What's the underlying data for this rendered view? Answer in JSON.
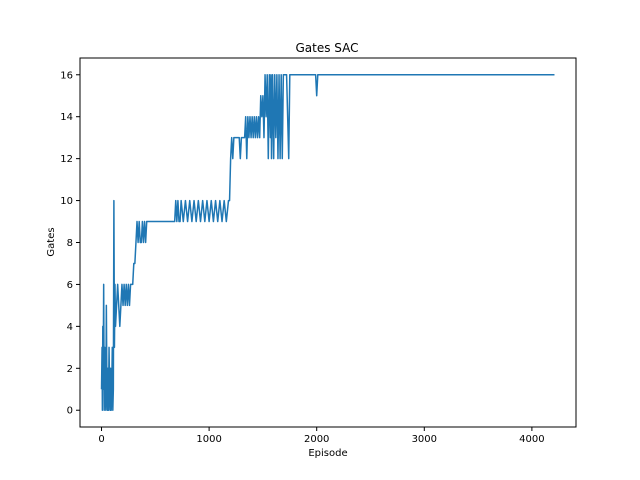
{
  "chart_data": {
    "type": "line",
    "title": "Gates SAC",
    "xlabel": "Episode",
    "ylabel": "Gates",
    "xlim": [
      -200,
      4410
    ],
    "ylim": [
      -0.8,
      16.8
    ],
    "xticks": [
      0,
      1000,
      2000,
      3000,
      4000
    ],
    "yticks": [
      0,
      2,
      4,
      6,
      8,
      10,
      12,
      14,
      16
    ],
    "grid": false,
    "legend": "none",
    "series": [
      {
        "color": "#1f77b4",
        "x": [
          0,
          5,
          8,
          12,
          15,
          20,
          25,
          30,
          35,
          40,
          45,
          50,
          55,
          60,
          65,
          70,
          75,
          80,
          85,
          90,
          95,
          100,
          105,
          110,
          115,
          120,
          125,
          130,
          140,
          150,
          160,
          170,
          180,
          190,
          200,
          210,
          220,
          230,
          240,
          250,
          260,
          270,
          280,
          290,
          300,
          310,
          320,
          330,
          340,
          350,
          360,
          370,
          380,
          390,
          400,
          410,
          420,
          440,
          460,
          480,
          500,
          550,
          600,
          650,
          680,
          690,
          700,
          710,
          720,
          730,
          740,
          760,
          780,
          800,
          820,
          840,
          860,
          880,
          900,
          920,
          940,
          960,
          980,
          1000,
          1020,
          1040,
          1060,
          1080,
          1100,
          1120,
          1140,
          1160,
          1180,
          1190,
          1195,
          1200,
          1210,
          1220,
          1230,
          1240,
          1250,
          1260,
          1270,
          1280,
          1290,
          1300,
          1320,
          1330,
          1340,
          1350,
          1360,
          1370,
          1380,
          1390,
          1400,
          1410,
          1420,
          1430,
          1440,
          1450,
          1460,
          1470,
          1480,
          1490,
          1500,
          1510,
          1520,
          1530,
          1540,
          1550,
          1560,
          1570,
          1575,
          1580,
          1590,
          1600,
          1610,
          1620,
          1630,
          1640,
          1650,
          1660,
          1670,
          1680,
          1690,
          1700,
          1720,
          1740,
          1750,
          1760,
          1800,
          1850,
          1900,
          1950,
          1990,
          2000,
          2010,
          2100,
          2500,
          3000,
          3500,
          4000,
          4210
        ],
        "y": [
          1,
          3,
          0,
          4,
          1,
          6,
          0,
          3,
          1,
          0,
          5,
          1,
          0,
          2,
          0,
          3,
          1,
          0,
          2,
          0,
          1,
          3,
          0,
          1,
          10,
          3,
          6,
          4,
          5,
          6,
          5,
          4,
          5,
          6,
          5,
          6,
          5,
          6,
          5,
          6,
          5,
          6,
          6,
          6,
          7,
          7,
          8,
          9,
          8,
          9,
          8,
          8,
          9,
          8,
          9,
          8,
          9,
          9,
          9,
          9,
          9,
          9,
          9,
          9,
          9,
          10,
          9,
          10,
          9,
          9,
          10,
          9,
          10,
          9,
          10,
          9,
          10,
          9,
          10,
          9,
          10,
          9,
          10,
          9,
          10,
          9,
          10,
          9,
          10,
          9,
          10,
          9,
          10,
          10,
          11,
          12,
          13,
          12,
          13,
          13,
          13,
          13,
          13,
          13,
          12,
          13,
          13,
          13,
          14,
          12,
          14,
          13,
          14,
          13,
          14,
          13,
          14,
          13,
          14,
          13,
          14,
          13,
          15,
          14,
          15,
          13,
          16,
          14,
          16,
          12,
          16,
          13,
          16,
          12,
          16,
          12,
          16,
          13,
          16,
          12,
          16,
          12,
          16,
          12,
          16,
          16,
          16,
          12,
          16,
          16,
          16,
          16,
          16,
          16,
          16,
          15,
          16,
          16,
          16,
          16,
          16,
          16,
          16
        ]
      }
    ]
  }
}
